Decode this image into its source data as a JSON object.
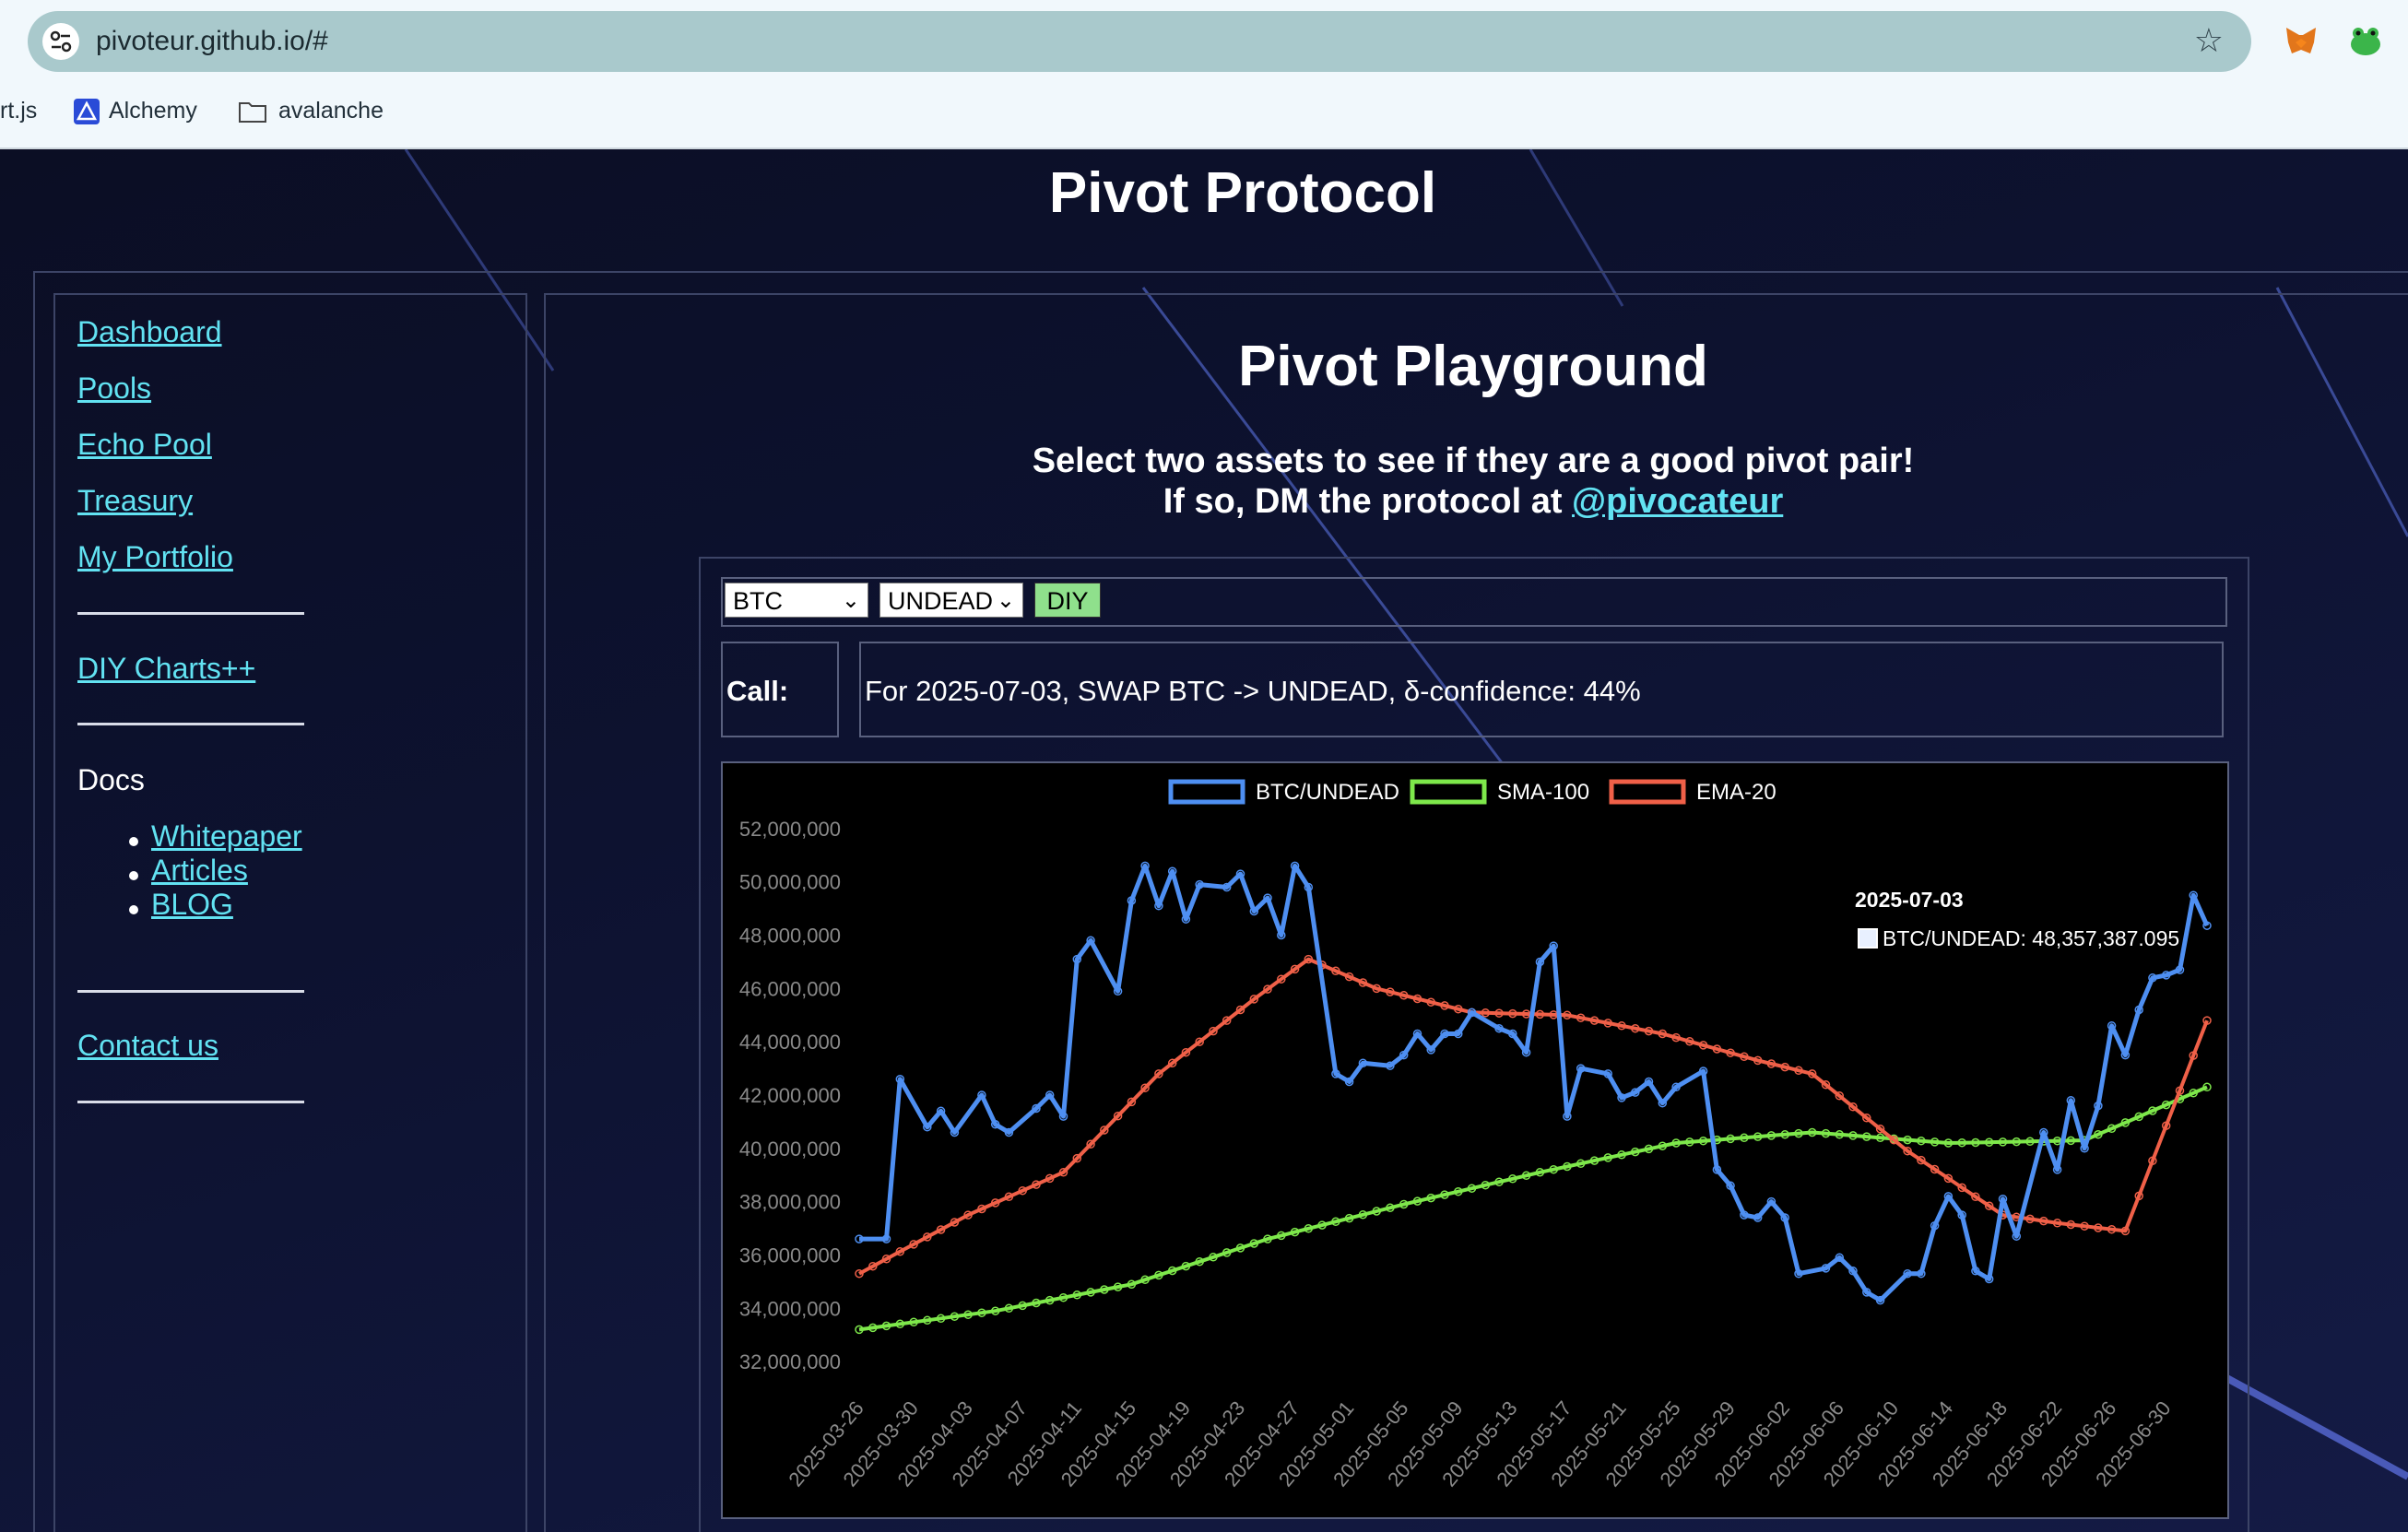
{
  "browser": {
    "url": "pivoteur.github.io/#",
    "bookmarks": [
      "rt.js",
      "Alchemy",
      "avalanche"
    ]
  },
  "site": {
    "title": "Pivot Protocol"
  },
  "sidebar": {
    "links": [
      "Dashboard",
      "Pools",
      "Echo Pool",
      "Treasury",
      "My Portfolio"
    ],
    "diy_link": "DIY Charts++",
    "docs_label": "Docs",
    "docs_links": [
      "Whitepaper",
      "Articles",
      "BLOG"
    ],
    "contact": "Contact us"
  },
  "main": {
    "title": "Pivot Playground",
    "intro_line1": "Select two assets to see if they are a good pivot pair!",
    "intro_line2_prefix": "If so, DM the protocol at ",
    "intro_handle": "@pivocateur"
  },
  "controls": {
    "asset1": "BTC",
    "asset2": "UNDEAD",
    "diy_button": "DIY",
    "call_label": "Call:",
    "call_text": "For 2025-07-03, SWAP BTC -> UNDEAD, δ-confidence: 44%"
  },
  "colors": {
    "accent_link": "#62e2f2",
    "series_btc": "#4e8ff2",
    "series_sma": "#7ee84b",
    "series_ema": "#f06048"
  },
  "tooltip": {
    "title": "2025-07-03",
    "label": "BTC/UNDEAD: 48,357,387.095"
  },
  "chart_data": {
    "type": "line",
    "legend_position": "top",
    "grid": false,
    "ylim": [
      31000000,
      53000000
    ],
    "y_ticks": [
      "52,000,000",
      "50,000,000",
      "48,000,000",
      "46,000,000",
      "44,000,000",
      "42,000,000",
      "40,000,000",
      "38,000,000",
      "36,000,000",
      "34,000,000",
      "32,000,000"
    ],
    "x_tick_labels": [
      "2025-03-26",
      "2025-03-30",
      "2025-04-03",
      "2025-04-07",
      "2025-04-11",
      "2025-04-15",
      "2025-04-19",
      "2025-04-23",
      "2025-04-27",
      "2025-05-01",
      "2025-05-05",
      "2025-05-09",
      "2025-05-13",
      "2025-05-17",
      "2025-05-21",
      "2025-05-25",
      "2025-05-29",
      "2025-06-02",
      "2025-06-06",
      "2025-06-10",
      "2025-06-14",
      "2025-06-18",
      "2025-06-22",
      "2025-06-26",
      "2025-06-30"
    ],
    "x_start": "2025-03-26",
    "x_end": "2025-07-03",
    "series": [
      {
        "name": "BTC/UNDEAD",
        "points": [
          [
            "2025-03-26",
            36600000
          ],
          [
            "2025-03-28",
            36600000
          ],
          [
            "2025-03-29",
            42600000
          ],
          [
            "2025-03-31",
            40800000
          ],
          [
            "2025-04-01",
            41400000
          ],
          [
            "2025-04-02",
            40600000
          ],
          [
            "2025-04-04",
            42000000
          ],
          [
            "2025-04-05",
            40900000
          ],
          [
            "2025-04-06",
            40600000
          ],
          [
            "2025-04-08",
            41500000
          ],
          [
            "2025-04-09",
            42000000
          ],
          [
            "2025-04-10",
            41200000
          ],
          [
            "2025-04-11",
            47100000
          ],
          [
            "2025-04-12",
            47800000
          ],
          [
            "2025-04-14",
            45900000
          ],
          [
            "2025-04-15",
            49300000
          ],
          [
            "2025-04-16",
            50600000
          ],
          [
            "2025-04-17",
            49100000
          ],
          [
            "2025-04-18",
            50400000
          ],
          [
            "2025-04-19",
            48600000
          ],
          [
            "2025-04-20",
            49900000
          ],
          [
            "2025-04-22",
            49800000
          ],
          [
            "2025-04-23",
            50300000
          ],
          [
            "2025-04-24",
            48900000
          ],
          [
            "2025-04-25",
            49400000
          ],
          [
            "2025-04-26",
            48000000
          ],
          [
            "2025-04-27",
            50600000
          ],
          [
            "2025-04-28",
            49800000
          ],
          [
            "2025-04-30",
            42800000
          ],
          [
            "2025-05-01",
            42500000
          ],
          [
            "2025-05-02",
            43200000
          ],
          [
            "2025-05-04",
            43100000
          ],
          [
            "2025-05-05",
            43500000
          ],
          [
            "2025-05-06",
            44300000
          ],
          [
            "2025-05-07",
            43700000
          ],
          [
            "2025-05-08",
            44300000
          ],
          [
            "2025-05-09",
            44300000
          ],
          [
            "2025-05-10",
            45100000
          ],
          [
            "2025-05-12",
            44500000
          ],
          [
            "2025-05-13",
            44300000
          ],
          [
            "2025-05-14",
            43600000
          ],
          [
            "2025-05-15",
            47000000
          ],
          [
            "2025-05-16",
            47600000
          ],
          [
            "2025-05-17",
            41200000
          ],
          [
            "2025-05-18",
            43000000
          ],
          [
            "2025-05-20",
            42800000
          ],
          [
            "2025-05-21",
            41900000
          ],
          [
            "2025-05-22",
            42100000
          ],
          [
            "2025-05-23",
            42500000
          ],
          [
            "2025-05-24",
            41700000
          ],
          [
            "2025-05-25",
            42300000
          ],
          [
            "2025-05-27",
            42900000
          ],
          [
            "2025-05-28",
            39200000
          ],
          [
            "2025-05-29",
            38600000
          ],
          [
            "2025-05-30",
            37500000
          ],
          [
            "2025-05-31",
            37400000
          ],
          [
            "2025-06-01",
            38000000
          ],
          [
            "2025-06-02",
            37400000
          ],
          [
            "2025-06-03",
            35300000
          ],
          [
            "2025-06-05",
            35500000
          ],
          [
            "2025-06-06",
            35900000
          ],
          [
            "2025-06-07",
            35400000
          ],
          [
            "2025-06-08",
            34600000
          ],
          [
            "2025-06-09",
            34300000
          ],
          [
            "2025-06-11",
            35300000
          ],
          [
            "2025-06-12",
            35300000
          ],
          [
            "2025-06-13",
            37100000
          ],
          [
            "2025-06-14",
            38200000
          ],
          [
            "2025-06-15",
            37500000
          ],
          [
            "2025-06-16",
            35400000
          ],
          [
            "2025-06-17",
            35100000
          ],
          [
            "2025-06-18",
            38100000
          ],
          [
            "2025-06-19",
            36700000
          ],
          [
            "2025-06-21",
            40600000
          ],
          [
            "2025-06-22",
            39200000
          ],
          [
            "2025-06-23",
            41800000
          ],
          [
            "2025-06-24",
            40000000
          ],
          [
            "2025-06-25",
            41600000
          ],
          [
            "2025-06-26",
            44600000
          ],
          [
            "2025-06-27",
            43500000
          ],
          [
            "2025-06-28",
            45200000
          ],
          [
            "2025-06-29",
            46400000
          ],
          [
            "2025-06-30",
            46500000
          ],
          [
            "2025-07-01",
            46700000
          ],
          [
            "2025-07-02",
            49500000
          ],
          [
            "2025-07-03",
            48357387.095
          ]
        ]
      },
      {
        "name": "SMA-100",
        "points": [
          [
            "2025-03-26",
            33200000
          ],
          [
            "2025-04-05",
            33900000
          ],
          [
            "2025-04-15",
            34900000
          ],
          [
            "2025-04-25",
            36600000
          ],
          [
            "2025-05-05",
            37900000
          ],
          [
            "2025-05-15",
            39100000
          ],
          [
            "2025-05-25",
            40200000
          ],
          [
            "2025-06-04",
            40600000
          ],
          [
            "2025-06-14",
            40200000
          ],
          [
            "2025-06-24",
            40300000
          ],
          [
            "2025-07-03",
            42300000
          ]
        ]
      },
      {
        "name": "EMA-20",
        "points": [
          [
            "2025-03-26",
            35300000
          ],
          [
            "2025-04-03",
            37500000
          ],
          [
            "2025-04-10",
            39100000
          ],
          [
            "2025-04-17",
            42800000
          ],
          [
            "2025-04-24",
            45600000
          ],
          [
            "2025-04-28",
            47100000
          ],
          [
            "2025-05-03",
            46000000
          ],
          [
            "2025-05-10",
            45100000
          ],
          [
            "2025-05-17",
            45000000
          ],
          [
            "2025-05-24",
            44300000
          ],
          [
            "2025-05-31",
            43300000
          ],
          [
            "2025-06-04",
            42800000
          ],
          [
            "2025-06-11",
            39900000
          ],
          [
            "2025-06-18",
            37500000
          ],
          [
            "2025-06-22",
            37200000
          ],
          [
            "2025-06-27",
            36900000
          ],
          [
            "2025-07-03",
            44800000
          ]
        ]
      }
    ]
  }
}
